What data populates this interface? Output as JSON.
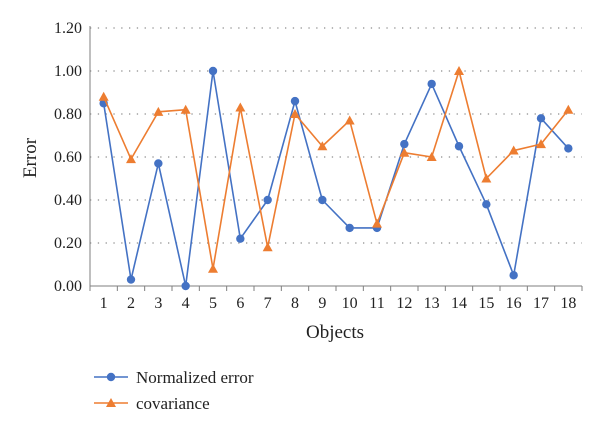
{
  "chart_data": {
    "type": "line",
    "title": "",
    "xlabel": "Objects",
    "ylabel": "Error",
    "categories": [
      "1",
      "2",
      "3",
      "4",
      "5",
      "6",
      "7",
      "8",
      "9",
      "10",
      "11",
      "12",
      "13",
      "14",
      "15",
      "16",
      "17",
      "18"
    ],
    "ylim": [
      0,
      1.2
    ],
    "yticks": [
      "0.00",
      "0.20",
      "0.40",
      "0.60",
      "0.80",
      "1.00",
      "1.20"
    ],
    "grid": true,
    "legend_position": "bottom-left",
    "series": [
      {
        "name": "Normalized error",
        "marker": "circle",
        "color": "#4472C4",
        "values": [
          0.85,
          0.03,
          0.57,
          0.0,
          1.0,
          0.22,
          0.4,
          0.86,
          0.4,
          0.27,
          0.27,
          0.66,
          0.94,
          0.65,
          0.38,
          0.05,
          0.78,
          0.64
        ]
      },
      {
        "name": "covariance",
        "marker": "triangle",
        "color": "#ED7D31",
        "values": [
          0.88,
          0.59,
          0.81,
          0.82,
          0.08,
          0.83,
          0.18,
          0.8,
          0.65,
          0.77,
          0.29,
          0.62,
          0.6,
          1.0,
          0.5,
          0.63,
          0.66,
          0.82
        ]
      }
    ]
  }
}
